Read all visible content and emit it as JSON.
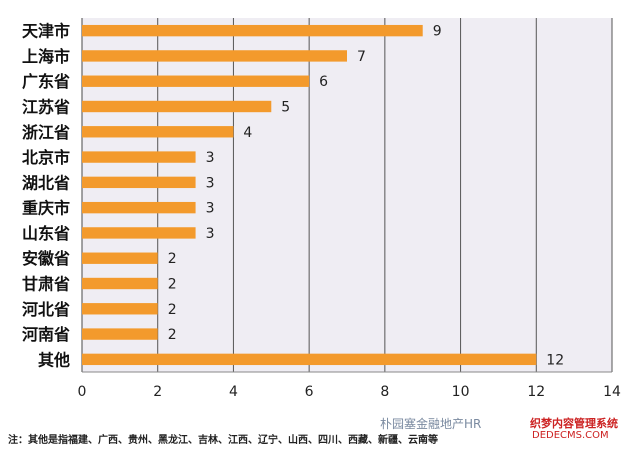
{
  "chart_data": {
    "type": "bar",
    "orientation": "horizontal",
    "categories": [
      "天津市",
      "上海市",
      "广东省",
      "江苏省",
      "浙江省",
      "北京市",
      "湖北省",
      "重庆市",
      "山东省",
      "安徽省",
      "甘肃省",
      "河北省",
      "河南省",
      "其他"
    ],
    "values": [
      9,
      7,
      6,
      5,
      4,
      3,
      3,
      3,
      3,
      2,
      2,
      2,
      2,
      12
    ],
    "xlim": [
      0,
      14
    ],
    "xticks": [
      0,
      2,
      4,
      6,
      8,
      10,
      12,
      14
    ],
    "grid": true,
    "legend": "none",
    "bar_color": "#f39a2c",
    "plot_bg": "#efedf3"
  },
  "footnote": "注：其他是指福建、广西、贵州、黑龙江、吉林、江西、辽宁、山西、四川、西藏、新疆、云南等",
  "watermark": "朴园塞金融地产HR",
  "watermark_site": "织梦内容管理系统",
  "watermark_url": "DEDECMS.COM"
}
